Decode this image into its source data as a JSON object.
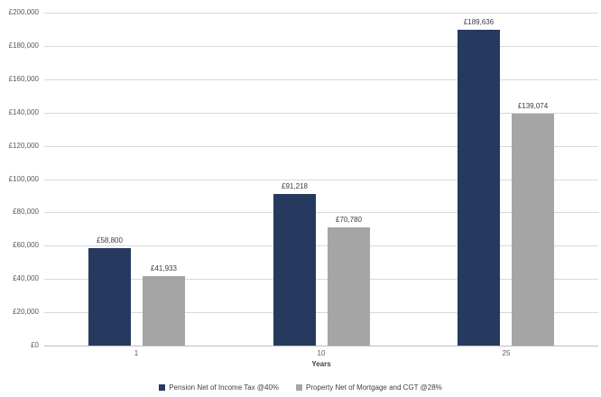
{
  "chart_data": {
    "type": "bar",
    "title": "",
    "xlabel": "Years",
    "ylabel": "",
    "categories": [
      "1",
      "10",
      "25"
    ],
    "series": [
      {
        "name": "Pension Net of Income Tax @40%",
        "color": "#253a5e",
        "values": [
          58800,
          91218,
          189636
        ],
        "labels": [
          "£58,800",
          "£91,218",
          "£189,636"
        ]
      },
      {
        "name": "Property Net of Mortgage and CGT @28%",
        "color": "#a5a5a5",
        "values": [
          41933,
          70780,
          139074
        ],
        "labels": [
          "£41,933",
          "£70,780",
          "£139,074"
        ]
      }
    ],
    "ylim": [
      0,
      200000
    ],
    "ytick_step": 20000,
    "ytick_labels": [
      "£0",
      "£20,000",
      "£40,000",
      "£60,000",
      "£80,000",
      "£100,000",
      "£120,000",
      "£140,000",
      "£160,000",
      "£180,000",
      "£200,000"
    ],
    "grid": true,
    "legend_position": "bottom"
  },
  "colors": {
    "gridline": "#d9d9d9",
    "axisline": "#bfbfbf",
    "tick_text": "#595959",
    "label_text": "#3b3b3b"
  }
}
